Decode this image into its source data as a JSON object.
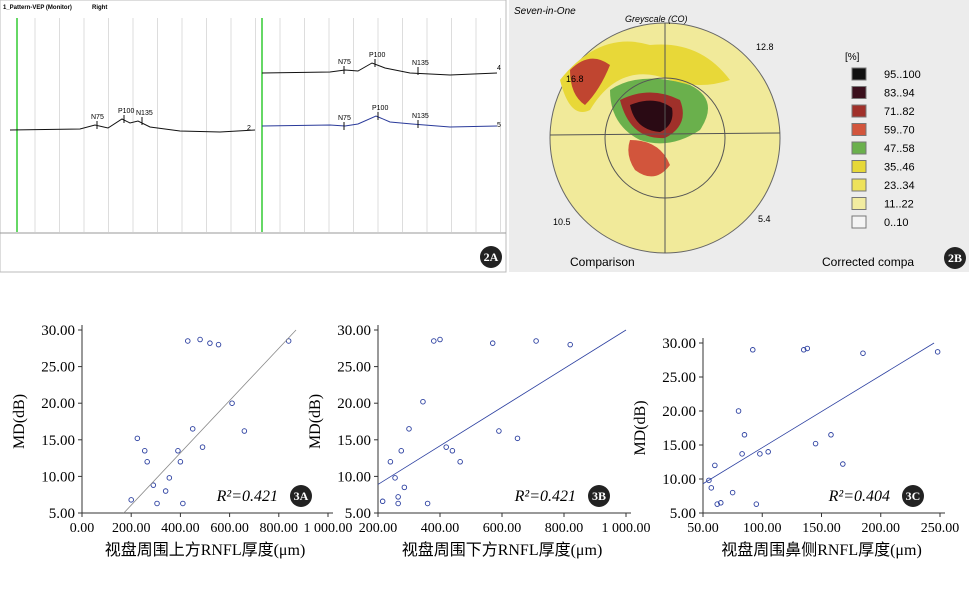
{
  "figure_2a": {
    "title": "1_Pattern-VEP (Monitor)",
    "eye": "Right",
    "panel": "2A",
    "traces": [
      {
        "label": "2",
        "peaks": [
          "N75",
          "P100",
          "N135"
        ]
      },
      {
        "label": "4",
        "peaks": [
          "N75",
          "P100",
          "N135"
        ]
      },
      {
        "label": "5",
        "peaks": [
          "N75",
          "P100",
          "N135"
        ]
      }
    ]
  },
  "figure_2b": {
    "title": "Seven-in-One",
    "subtitle": "Greyscale (CO)",
    "unit": "[%]",
    "panel": "2B",
    "legend": [
      {
        "label": "95..100",
        "color": "#111111"
      },
      {
        "label": "83..94",
        "color": "#3a0f1c"
      },
      {
        "label": "71..82",
        "color": "#a0302a"
      },
      {
        "label": "59..70",
        "color": "#d2553c"
      },
      {
        "label": "47..58",
        "color": "#6ab04c"
      },
      {
        "label": "35..46",
        "color": "#e6d838"
      },
      {
        "label": "23..34",
        "color": "#eee25a"
      },
      {
        "label": "11..22",
        "color": "#f2eca0"
      },
      {
        "label": "0..10",
        "color": "#f4f4f4"
      }
    ],
    "corner_values": [
      "16.8",
      "12.8",
      "10.5",
      "5.4"
    ],
    "footer_left": "Comparison",
    "footer_right": "Corrected compa"
  },
  "chart_data": [
    {
      "type": "scatter",
      "panel": "3A",
      "x_label": "视盘周围上方RNFL厚度(μm)",
      "y_label": "MD(dB)",
      "annotation": "R²=0.421",
      "color": "#2b3fa0",
      "fit_color": "#888888",
      "xlim": [
        0,
        1000
      ],
      "ylim": [
        5,
        30
      ],
      "xticks": [
        {
          "value": 0,
          "label": "0.00"
        },
        {
          "value": 200,
          "label": "200.00"
        },
        {
          "value": 400,
          "label": "400.00"
        },
        {
          "value": 600,
          "label": "600.00"
        },
        {
          "value": 800,
          "label": "800.00"
        },
        {
          "value": 1000,
          "label": "1 000.00"
        }
      ],
      "yticks": [
        {
          "value": 5,
          "label": "5.00"
        },
        {
          "value": 10,
          "label": "10.00"
        },
        {
          "value": 15,
          "label": "15.00"
        },
        {
          "value": 20,
          "label": "20.00"
        },
        {
          "value": 25,
          "label": "25.00"
        },
        {
          "value": 30,
          "label": "30.00"
        }
      ],
      "x": [
        200,
        225,
        255,
        265,
        290,
        305,
        340,
        355,
        390,
        400,
        410,
        430,
        450,
        480,
        490,
        520,
        555,
        610,
        660,
        840
      ],
      "values": [
        6.8,
        15.2,
        13.5,
        12,
        8.8,
        6.3,
        8,
        9.8,
        13.5,
        12,
        6.3,
        28.5,
        16.5,
        28.7,
        14,
        28.2,
        28,
        20,
        16.2,
        28.5
      ],
      "fit_line": {
        "x": [
          170,
          870
        ],
        "y": [
          5,
          30
        ]
      }
    },
    {
      "type": "scatter",
      "panel": "3B",
      "x_label": "视盘周围下方RNFL厚度(μm)",
      "y_label": "MD(dB)",
      "annotation": "R²=0.421",
      "color": "#2b3fa0",
      "fit_color": "#2b3fa0",
      "xlim": [
        200,
        1000
      ],
      "ylim": [
        5,
        30
      ],
      "xticks": [
        {
          "value": 200,
          "label": "200.00"
        },
        {
          "value": 400,
          "label": "400.00"
        },
        {
          "value": 600,
          "label": "600.00"
        },
        {
          "value": 800,
          "label": "800.00"
        },
        {
          "value": 1000,
          "label": "1 000.00"
        }
      ],
      "yticks": [
        {
          "value": 5,
          "label": "5.00"
        },
        {
          "value": 10,
          "label": "10.00"
        },
        {
          "value": 15,
          "label": "15.00"
        },
        {
          "value": 20,
          "label": "20.00"
        },
        {
          "value": 25,
          "label": "25.00"
        },
        {
          "value": 30,
          "label": "30.00"
        }
      ],
      "x": [
        215,
        240,
        255,
        265,
        265,
        275,
        285,
        300,
        345,
        360,
        380,
        400,
        420,
        440,
        465,
        570,
        590,
        650,
        710,
        820
      ],
      "values": [
        6.6,
        12,
        9.8,
        7.2,
        6.3,
        13.5,
        8.5,
        16.5,
        20.2,
        6.3,
        28.5,
        28.7,
        14,
        13.5,
        12,
        28.2,
        16.2,
        15.2,
        28.5,
        28
      ],
      "fit_line": {
        "x": [
          200,
          1000
        ],
        "y": [
          8.9,
          30
        ]
      }
    },
    {
      "type": "scatter",
      "panel": "3C",
      "x_label": "视盘周围鼻侧RNFL厚度(μm)",
      "y_label": "MD(dB)",
      "annotation": "R²=0.404",
      "color": "#2b3fa0",
      "fit_color": "#2b3fa0",
      "xlim": [
        50,
        250
      ],
      "ylim": [
        5,
        30
      ],
      "xticks": [
        {
          "value": 50,
          "label": "50.00"
        },
        {
          "value": 100,
          "label": "100.00"
        },
        {
          "value": 150,
          "label": "150.00"
        },
        {
          "value": 200,
          "label": "200.00"
        },
        {
          "value": 250,
          "label": "250.00"
        }
      ],
      "yticks": [
        {
          "value": 5,
          "label": "5.00"
        },
        {
          "value": 10,
          "label": "10.00"
        },
        {
          "value": 15,
          "label": "15.00"
        },
        {
          "value": 20,
          "label": "20.00"
        },
        {
          "value": 25,
          "label": "25.00"
        },
        {
          "value": 30,
          "label": "30.00"
        }
      ],
      "x": [
        55,
        57,
        60,
        62,
        65,
        75,
        80,
        83,
        85,
        92,
        95,
        98,
        105,
        135,
        138,
        145,
        158,
        168,
        185,
        248
      ],
      "values": [
        9.8,
        8.7,
        12,
        6.3,
        6.5,
        8,
        20,
        13.7,
        16.5,
        29,
        6.3,
        13.7,
        14,
        29,
        29.2,
        15.2,
        16.5,
        12.2,
        28.5,
        28.7
      ],
      "fit_line": {
        "x": [
          50,
          245
        ],
        "y": [
          9.3,
          30
        ]
      }
    }
  ]
}
